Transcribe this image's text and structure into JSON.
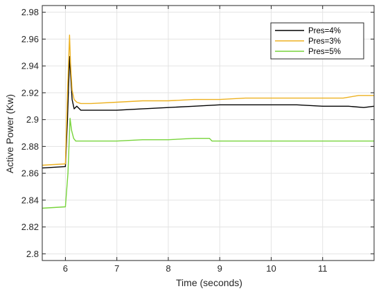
{
  "chart_data": {
    "type": "line",
    "title": "",
    "xlabel": "Time (seconds)",
    "ylabel": "Active Power (Kw)",
    "xlim": [
      5.55,
      12.0
    ],
    "ylim": [
      2.795,
      2.985
    ],
    "xticks": [
      6,
      7,
      8,
      9,
      10,
      11
    ],
    "yticks": [
      2.8,
      2.82,
      2.84,
      2.86,
      2.88,
      2.9,
      2.92,
      2.94,
      2.96,
      2.98
    ],
    "ytick_labels": [
      "2.8",
      "2.82",
      "2.84",
      "2.86",
      "2.88",
      "2.9",
      "2.92",
      "2.94",
      "2.96",
      "2.98"
    ],
    "grid": true,
    "legend_position": "top-right",
    "series": [
      {
        "name": "Pres=4%",
        "color": "#000000",
        "x": [
          5.55,
          6.0,
          6.04,
          6.08,
          6.1,
          6.13,
          6.17,
          6.22,
          6.3,
          6.5,
          7.0,
          7.5,
          8.0,
          8.5,
          9.0,
          9.5,
          10.0,
          10.5,
          11.0,
          11.5,
          11.8,
          12.0
        ],
        "y": [
          2.864,
          2.865,
          2.9,
          2.947,
          2.935,
          2.915,
          2.908,
          2.91,
          2.907,
          2.907,
          2.907,
          2.908,
          2.909,
          2.91,
          2.911,
          2.911,
          2.911,
          2.911,
          2.91,
          2.91,
          2.909,
          2.91
        ]
      },
      {
        "name": "Pres=3%",
        "color": "#EDB120",
        "x": [
          5.55,
          6.0,
          6.04,
          6.08,
          6.1,
          6.13,
          6.17,
          6.22,
          6.3,
          6.5,
          7.0,
          7.5,
          8.0,
          8.5,
          9.0,
          9.5,
          10.0,
          10.5,
          11.0,
          11.4,
          11.7,
          12.0
        ],
        "y": [
          2.866,
          2.867,
          2.92,
          2.963,
          2.942,
          2.922,
          2.915,
          2.913,
          2.912,
          2.912,
          2.913,
          2.914,
          2.914,
          2.915,
          2.915,
          2.916,
          2.916,
          2.916,
          2.916,
          2.916,
          2.918,
          2.918
        ]
      },
      {
        "name": "Pres=5%",
        "color": "#77D43A",
        "x": [
          5.55,
          6.0,
          6.05,
          6.09,
          6.12,
          6.16,
          6.2,
          6.3,
          7.0,
          7.5,
          8.0,
          8.5,
          8.8,
          8.85,
          9.0,
          9.5,
          10.0,
          10.5,
          11.0,
          11.5,
          12.0
        ],
        "y": [
          2.834,
          2.835,
          2.86,
          2.901,
          2.892,
          2.886,
          2.884,
          2.884,
          2.884,
          2.885,
          2.885,
          2.886,
          2.886,
          2.884,
          2.884,
          2.884,
          2.884,
          2.884,
          2.884,
          2.884,
          2.884
        ]
      }
    ]
  }
}
